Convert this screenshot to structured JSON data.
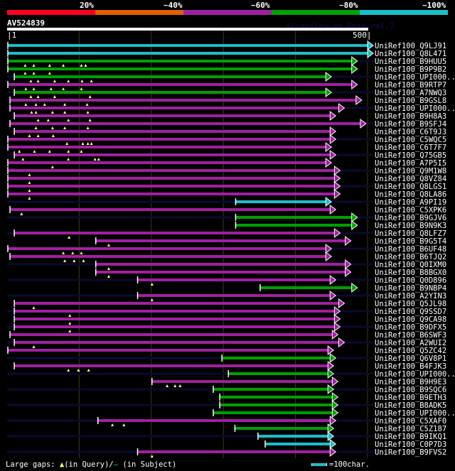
{
  "legend": {
    "labels": [
      "20%",
      "~40%",
      "~60%",
      "~80%",
      "~100%"
    ],
    "colors": [
      "#ff0022",
      "#e06000",
      "#a020a0",
      "#00a000",
      "#18c0c8"
    ]
  },
  "header": {
    "query_name": "AV524839",
    "app_title": "AlignView.pm Beta rel.7",
    "query_start": "1",
    "query_end": "500"
  },
  "footer": {
    "gap_label": "Large gaps:",
    "query_glyph": "▲",
    "query_text": "(in Query)/",
    "subject_glyph": "–",
    "subject_text": " (in Subject)",
    "scale_text": "=100char."
  },
  "chart_data": {
    "type": "alignment",
    "query_length": 500,
    "axis_ticks": [
      1,
      100,
      200,
      300,
      400,
      500
    ],
    "hits": [
      {
        "name": "UniRef100_Q9LJ91",
        "start": 1,
        "end": 500,
        "identity": "~100%",
        "color": "#18c0c8",
        "qgaps": []
      },
      {
        "name": "UniRef100_Q8L471",
        "start": 1,
        "end": 500,
        "identity": "~100%",
        "color": "#18c0c8",
        "qgaps": []
      },
      {
        "name": "UniRef100_B9HUU5",
        "start": 1,
        "end": 478,
        "identity": "~80%",
        "color": "#00a000",
        "qgaps": [
          25,
          37,
          59,
          78,
          103,
          109
        ]
      },
      {
        "name": "UniRef100_B9P9B2",
        "start": 1,
        "end": 478,
        "identity": "~80%",
        "color": "#00a000",
        "qgaps": [
          25,
          37,
          59
        ]
      },
      {
        "name": "UniRef100_UPI000..",
        "start": 10,
        "end": 442,
        "identity": "~80%",
        "color": "#00a000",
        "qgaps": [
          33,
          43,
          66,
          85,
          104,
          117
        ]
      },
      {
        "name": "UniRef100_B9RTP7",
        "start": 1,
        "end": 478,
        "identity": "~60%",
        "color": "#a020a0",
        "qgaps": [
          26,
          37,
          61,
          78,
          103
        ]
      },
      {
        "name": "UniRef100_A7NWQ3",
        "start": 10,
        "end": 442,
        "identity": "~80%",
        "color": "#00a000",
        "qgaps": [
          33,
          43,
          66,
          115
        ]
      },
      {
        "name": "UniRef100_B9GSL8",
        "start": 4,
        "end": 484,
        "identity": "~60%",
        "color": "#a020a0",
        "qgaps": [
          26,
          40,
          52,
          80,
          111
        ]
      },
      {
        "name": "UniRef100_UPI000..",
        "start": 4,
        "end": 460,
        "identity": "~60%",
        "color": "#a020a0",
        "qgaps": [
          34,
          40,
          63,
          80,
          112
        ]
      },
      {
        "name": "UniRef100_B9H8A3",
        "start": 10,
        "end": 448,
        "identity": "~60%",
        "color": "#a020a0",
        "qgaps": [
          43,
          57,
          85,
          115
        ]
      },
      {
        "name": "UniRef100_B9SFJ4",
        "start": 4,
        "end": 490,
        "identity": "~60%",
        "color": "#a020a0",
        "qgaps": [
          40,
          63,
          80,
          112
        ]
      },
      {
        "name": "UniRef100_C6T9J3",
        "start": 10,
        "end": 448,
        "identity": "~60%",
        "color": "#a020a0",
        "qgaps": [
          31,
          43,
          64
        ]
      },
      {
        "name": "UniRef100_C5WQC5",
        "start": 1,
        "end": 448,
        "identity": "~60%",
        "color": "#a020a0",
        "qgaps": [
          83,
          105,
          112,
          117
        ]
      },
      {
        "name": "UniRef100_C6T7F7",
        "start": 1,
        "end": 442,
        "identity": "~60%",
        "color": "#a020a0",
        "qgaps": [
          17,
          38,
          59,
          85,
          103
        ]
      },
      {
        "name": "UniRef100_Q75GB5",
        "start": 10,
        "end": 448,
        "identity": "~60%",
        "color": "#a020a0",
        "qgaps": [
          22,
          85,
          122,
          127
        ]
      },
      {
        "name": "UniRef100_A7P5I5",
        "start": 1,
        "end": 442,
        "identity": "~60%",
        "color": "#a020a0",
        "qgaps": [
          63
        ]
      },
      {
        "name": "UniRef100_Q9M1W8",
        "start": 1,
        "end": 454,
        "identity": "~60%",
        "color": "#a020a0",
        "qgaps": [
          31
        ]
      },
      {
        "name": "UniRef100_Q8VZ84",
        "start": 1,
        "end": 454,
        "identity": "~60%",
        "color": "#a020a0",
        "qgaps": [
          31
        ]
      },
      {
        "name": "UniRef100_Q8LGS1",
        "start": 1,
        "end": 454,
        "identity": "~60%",
        "color": "#a020a0",
        "qgaps": [
          31
        ]
      },
      {
        "name": "UniRef100_Q8LA86",
        "start": 1,
        "end": 454,
        "identity": "~60%",
        "color": "#a020a0",
        "qgaps": [
          31
        ]
      },
      {
        "name": "UniRef100_A9PI19",
        "start": 317,
        "end": 442,
        "identity": "~100%",
        "color": "#18c0c8",
        "qgaps": []
      },
      {
        "name": "UniRef100_C5XPK6",
        "start": 4,
        "end": 448,
        "identity": "~60%",
        "color": "#a020a0",
        "qgaps": [
          20
        ]
      },
      {
        "name": "UniRef100_B9GJV6",
        "start": 317,
        "end": 478,
        "identity": "~80%",
        "color": "#00a000",
        "qgaps": []
      },
      {
        "name": "UniRef100_B9N9K3",
        "start": 317,
        "end": 478,
        "identity": "~80%",
        "color": "#00a000",
        "qgaps": []
      },
      {
        "name": "UniRef100_Q8LFZ7",
        "start": 10,
        "end": 454,
        "identity": "~60%",
        "color": "#a020a0",
        "qgaps": [
          86
        ]
      },
      {
        "name": "UniRef100_B9G5T4",
        "start": 123,
        "end": 469,
        "identity": "~60%",
        "color": "#a020a0",
        "qgaps": [
          141
        ]
      },
      {
        "name": "UniRef100_B6UF48",
        "start": 1,
        "end": 442,
        "identity": "~60%",
        "color": "#a020a0",
        "qgaps": [
          78,
          91,
          103
        ]
      },
      {
        "name": "UniRef100_B6TJQ2",
        "start": 4,
        "end": 442,
        "identity": "~60%",
        "color": "#a020a0",
        "qgaps": [
          80,
          93,
          106
        ]
      },
      {
        "name": "UniRef100_Q0IXM0",
        "start": 123,
        "end": 469,
        "identity": "~60%",
        "color": "#a020a0",
        "qgaps": [
          141
        ]
      },
      {
        "name": "UniRef100_B8BGX0",
        "start": 123,
        "end": 469,
        "identity": "~60%",
        "color": "#a020a0",
        "qgaps": [
          141
        ]
      },
      {
        "name": "UniRef100_Q0D896",
        "start": 181,
        "end": 448,
        "identity": "~60%",
        "color": "#a020a0",
        "qgaps": [
          201
        ]
      },
      {
        "name": "UniRef100_B9NBP4",
        "start": 351,
        "end": 478,
        "identity": "~80%",
        "color": "#00a000",
        "qgaps": []
      },
      {
        "name": "UniRef100_A2YIN3",
        "start": 181,
        "end": 448,
        "identity": "~60%",
        "color": "#a020a0",
        "qgaps": [
          201
        ]
      },
      {
        "name": "UniRef100_Q5JL98",
        "start": 10,
        "end": 460,
        "identity": "~60%",
        "color": "#a020a0",
        "qgaps": [
          37
        ]
      },
      {
        "name": "UniRef100_Q9SSD7",
        "start": 10,
        "end": 454,
        "identity": "~60%",
        "color": "#a020a0",
        "qgaps": [
          87
        ]
      },
      {
        "name": "UniRef100_Q9CA98",
        "start": 10,
        "end": 454,
        "identity": "~60%",
        "color": "#a020a0",
        "qgaps": [
          87
        ]
      },
      {
        "name": "UniRef100_B9DFX5",
        "start": 10,
        "end": 454,
        "identity": "~60%",
        "color": "#a020a0",
        "qgaps": [
          87
        ]
      },
      {
        "name": "UniRef100_B6SWF3",
        "start": 4,
        "end": 451,
        "identity": "~60%",
        "color": "#a020a0",
        "qgaps": []
      },
      {
        "name": "UniRef100_A2WUI2",
        "start": 10,
        "end": 460,
        "identity": "~60%",
        "color": "#a020a0",
        "qgaps": [
          37
        ]
      },
      {
        "name": "UniRef100_Q5ZC42",
        "start": 1,
        "end": 445,
        "identity": "~60%",
        "color": "#a020a0",
        "qgaps": []
      },
      {
        "name": "UniRef100_Q6V8P1",
        "start": 298,
        "end": 448,
        "identity": "~80%",
        "color": "#00a000",
        "qgaps": []
      },
      {
        "name": "UniRef100_B4FJK3",
        "start": 10,
        "end": 445,
        "identity": "~60%",
        "color": "#a020a0",
        "qgaps": [
          85,
          99,
          113
        ]
      },
      {
        "name": "UniRef100_UPI000..",
        "start": 307,
        "end": 445,
        "identity": "~80%",
        "color": "#00a000",
        "qgaps": []
      },
      {
        "name": "UniRef100_B9H9E3",
        "start": 201,
        "end": 451,
        "identity": "~60%",
        "color": "#a020a0",
        "qgaps": [
          222,
          233,
          240
        ]
      },
      {
        "name": "UniRef100_B9SQC6",
        "start": 286,
        "end": 445,
        "identity": "~80%",
        "color": "#00a000",
        "qgaps": []
      },
      {
        "name": "UniRef100_B9ETH3",
        "start": 295,
        "end": 451,
        "identity": "~80%",
        "color": "#00a000",
        "qgaps": []
      },
      {
        "name": "UniRef100_B8ADK5",
        "start": 295,
        "end": 451,
        "identity": "~80%",
        "color": "#00a000",
        "qgaps": []
      },
      {
        "name": "UniRef100_UPI000..",
        "start": 286,
        "end": 451,
        "identity": "~80%",
        "color": "#00a000",
        "qgaps": []
      },
      {
        "name": "UniRef100_C5XAF0",
        "start": 126,
        "end": 448,
        "identity": "~60%",
        "color": "#a020a0",
        "qgaps": [
          146,
          162
        ]
      },
      {
        "name": "UniRef100_C5Z187",
        "start": 316,
        "end": 445,
        "identity": "~80%",
        "color": "#00a000",
        "qgaps": []
      },
      {
        "name": "UniRef100_B9IKQ1",
        "start": 348,
        "end": 445,
        "identity": "~100%",
        "color": "#18c0c8",
        "qgaps": []
      },
      {
        "name": "UniRef100_C0P7D3",
        "start": 358,
        "end": 448,
        "identity": "~100%",
        "color": "#18c0c8",
        "qgaps": []
      },
      {
        "name": "UniRef100_B9FVS2",
        "start": 181,
        "end": 448,
        "identity": "~60%",
        "color": "#a020a0",
        "qgaps": [
          201
        ]
      }
    ]
  }
}
